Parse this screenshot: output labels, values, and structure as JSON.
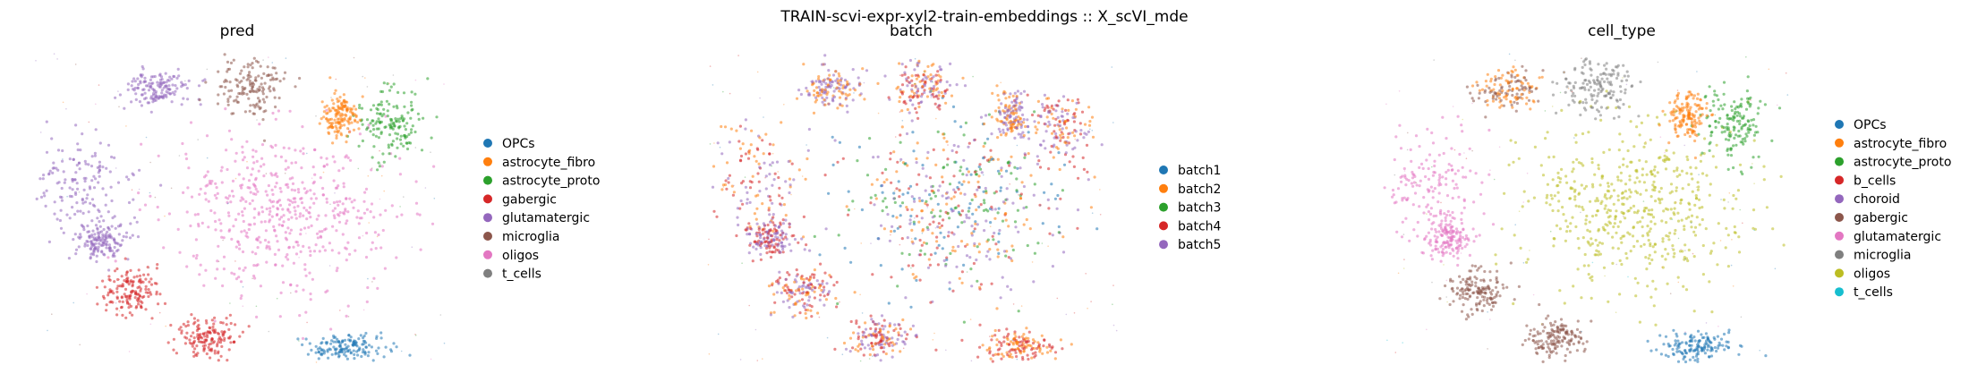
{
  "chart_data": [
    {
      "type": "scatter",
      "suptitle": "TRAIN-scvi-expr-xyl2-train-embeddings :: X_scVI_mde",
      "title": "pred",
      "xlabel": "",
      "ylabel": "",
      "grid": false,
      "axes_visible": false,
      "legend_position": "right",
      "series": [
        {
          "name": "OPCs",
          "color": "#1f77b4"
        },
        {
          "name": "astrocyte_fibro",
          "color": "#ff7f0e"
        },
        {
          "name": "astrocyte_proto",
          "color": "#2ca02c"
        },
        {
          "name": "gabergic",
          "color": "#d62728"
        },
        {
          "name": "glutamatergic",
          "color": "#9467bd"
        },
        {
          "name": "microglia",
          "color": "#8c564b"
        },
        {
          "name": "oligos",
          "color": "#e377c2"
        },
        {
          "name": "t_cells",
          "color": "#7f7f7f"
        }
      ]
    },
    {
      "type": "scatter",
      "title": "batch",
      "xlabel": "",
      "ylabel": "",
      "grid": false,
      "axes_visible": false,
      "legend_position": "right",
      "series": [
        {
          "name": "batch1",
          "color": "#1f77b4"
        },
        {
          "name": "batch2",
          "color": "#ff7f0e"
        },
        {
          "name": "batch3",
          "color": "#2ca02c"
        },
        {
          "name": "batch4",
          "color": "#d62728"
        },
        {
          "name": "batch5",
          "color": "#9467bd"
        }
      ]
    },
    {
      "type": "scatter",
      "title": "cell_type",
      "xlabel": "",
      "ylabel": "",
      "grid": false,
      "axes_visible": false,
      "legend_position": "right",
      "series": [
        {
          "name": "OPCs",
          "color": "#1f77b4"
        },
        {
          "name": "astrocyte_fibro",
          "color": "#ff7f0e"
        },
        {
          "name": "astrocyte_proto",
          "color": "#2ca02c"
        },
        {
          "name": "b_cells",
          "color": "#d62728"
        },
        {
          "name": "choroid",
          "color": "#9467bd"
        },
        {
          "name": "gabergic",
          "color": "#8c564b"
        },
        {
          "name": "glutamatergic",
          "color": "#e377c2"
        },
        {
          "name": "microglia",
          "color": "#7f7f7f"
        },
        {
          "name": "oligos",
          "color": "#bcbd22"
        },
        {
          "name": "t_cells",
          "color": "#17becf"
        }
      ]
    }
  ]
}
